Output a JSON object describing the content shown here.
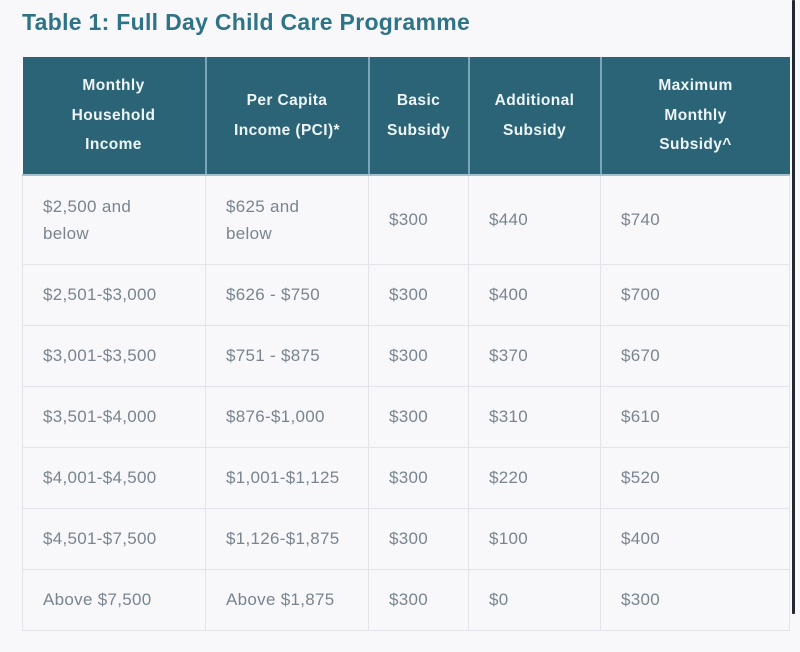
{
  "title": "Table 1: Full Day Child Care Programme",
  "table": {
    "headers": [
      "Monthly\nHousehold\nIncome",
      "Per Capita\nIncome (PCI)*",
      "Basic\nSubsidy",
      "Additional\nSubsidy",
      "Maximum\nMonthly\nSubsidy^"
    ],
    "rows": [
      [
        "$2,500 and\nbelow",
        "$625 and\nbelow",
        "$300",
        "$440",
        "$740"
      ],
      [
        "$2,501-$3,000",
        "$626 - $750",
        "$300",
        "$400",
        "$700"
      ],
      [
        "$3,001-$3,500",
        "$751 - $875",
        "$300",
        "$370",
        "$670"
      ],
      [
        "$3,501-$4,000",
        "$876-$1,000",
        "$300",
        "$310",
        "$610"
      ],
      [
        "$4,001-$4,500",
        "$1,001-$1,125",
        "$300",
        "$220",
        "$520"
      ],
      [
        "$4,501-$7,500",
        "$1,126-$1,875",
        "$300",
        "$100",
        "$400"
      ],
      [
        "Above $7,500",
        "Above $1,875",
        "$300",
        "$0",
        "$300"
      ]
    ]
  },
  "colors": {
    "header_background": "#2b6476",
    "header_text": "#edf5f7",
    "title_text": "#2e7486",
    "cell_background": "#f8f8fb",
    "cell_text": "#78858f",
    "header_divider": "#7aa6b5",
    "body_border": "#e3e3eb"
  }
}
